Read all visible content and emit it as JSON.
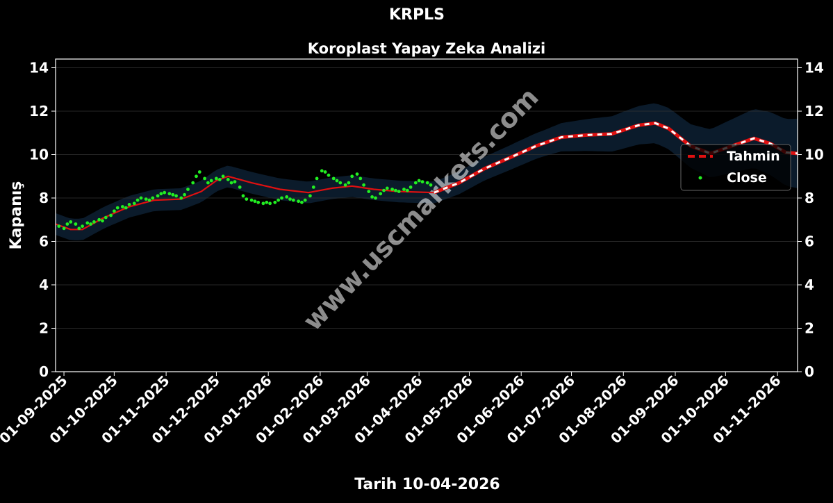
{
  "chart_data": {
    "type": "line",
    "suptitle": "KRPLS",
    "title": "Koroplast Yapay Zeka Analizi",
    "xlabel": "Tarih 10-04-2026",
    "ylabel": "Kapanış",
    "ylim": [
      0,
      14.4
    ],
    "yticks": [
      0,
      2,
      4,
      6,
      8,
      10,
      12,
      14
    ],
    "xlim": [
      "2025-08-27",
      "2026-11-13"
    ],
    "xticks": [
      {
        "date": "2025-09-01",
        "label": "01-09-2025"
      },
      {
        "date": "2025-10-01",
        "label": "01-10-2025"
      },
      {
        "date": "2025-11-01",
        "label": "01-11-2025"
      },
      {
        "date": "2025-12-01",
        "label": "01-12-2025"
      },
      {
        "date": "2026-01-01",
        "label": "01-01-2026"
      },
      {
        "date": "2026-02-01",
        "label": "01-02-2026"
      },
      {
        "date": "2026-03-01",
        "label": "01-03-2026"
      },
      {
        "date": "2026-04-01",
        "label": "01-04-2026"
      },
      {
        "date": "2026-05-01",
        "label": "01-05-2026"
      },
      {
        "date": "2026-06-01",
        "label": "01-06-2026"
      },
      {
        "date": "2026-07-01",
        "label": "01-07-2026"
      },
      {
        "date": "2026-08-01",
        "label": "01-08-2026"
      },
      {
        "date": "2026-09-01",
        "label": "01-09-2026"
      },
      {
        "date": "2026-10-01",
        "label": "01-10-2026"
      },
      {
        "date": "2026-11-01",
        "label": "01-11-2026"
      }
    ],
    "grid": true,
    "legend_position": "right",
    "legend": [
      {
        "name": "Tahmin",
        "style": "dashed-line"
      },
      {
        "name": "Close",
        "style": "dots"
      }
    ],
    "watermark": "www.uscmarkets.com",
    "colors": {
      "background": "#000000",
      "band": "#0b1b2b",
      "fit_line": "#e01010",
      "forecast_dash_a": "#e01010",
      "forecast_dash_b": "#ffffff",
      "close_points": "#22ee22",
      "grid": "#333333",
      "text": "#ffffff"
    },
    "band_halfwidth": [
      [
        "2025-08-27",
        0.5
      ],
      [
        "2026-04-10",
        0.5
      ],
      [
        "2026-06-15",
        0.6
      ],
      [
        "2026-08-01",
        0.85
      ],
      [
        "2026-09-10",
        1.0
      ],
      [
        "2026-11-13",
        1.6
      ]
    ],
    "series": [
      {
        "name": "Tahmin",
        "role": "fit",
        "points": [
          [
            "2025-08-27",
            6.8
          ],
          [
            "2025-09-05",
            6.55
          ],
          [
            "2025-09-12",
            6.55
          ],
          [
            "2025-09-25",
            7.1
          ],
          [
            "2025-10-10",
            7.6
          ],
          [
            "2025-10-25",
            7.9
          ],
          [
            "2025-11-10",
            7.95
          ],
          [
            "2025-11-22",
            8.3
          ],
          [
            "2025-12-01",
            8.8
          ],
          [
            "2025-12-08",
            9.0
          ],
          [
            "2025-12-22",
            8.7
          ],
          [
            "2026-01-08",
            8.4
          ],
          [
            "2026-01-25",
            8.25
          ],
          [
            "2026-02-08",
            8.45
          ],
          [
            "2026-02-20",
            8.55
          ],
          [
            "2026-03-05",
            8.4
          ],
          [
            "2026-03-20",
            8.3
          ],
          [
            "2026-04-10",
            8.25
          ]
        ]
      },
      {
        "name": "Tahmin",
        "role": "forecast",
        "points": [
          [
            "2026-04-10",
            8.25
          ],
          [
            "2026-04-25",
            8.7
          ],
          [
            "2026-05-10",
            9.35
          ],
          [
            "2026-05-25",
            9.85
          ],
          [
            "2026-06-10",
            10.4
          ],
          [
            "2026-06-25",
            10.8
          ],
          [
            "2026-07-10",
            10.9
          ],
          [
            "2026-07-25",
            10.95
          ],
          [
            "2026-08-10",
            11.35
          ],
          [
            "2026-08-20",
            11.45
          ],
          [
            "2026-08-28",
            11.2
          ],
          [
            "2026-09-10",
            10.4
          ],
          [
            "2026-09-22",
            10.05
          ],
          [
            "2026-10-05",
            10.4
          ],
          [
            "2026-10-18",
            10.75
          ],
          [
            "2026-10-28",
            10.5
          ],
          [
            "2026-11-06",
            10.1
          ],
          [
            "2026-11-13",
            10.05
          ]
        ]
      },
      {
        "name": "Close",
        "role": "points",
        "points": [
          [
            "2025-08-29",
            6.7
          ],
          [
            "2025-09-01",
            6.6
          ],
          [
            "2025-09-03",
            6.8
          ],
          [
            "2025-09-05",
            6.9
          ],
          [
            "2025-09-08",
            6.8
          ],
          [
            "2025-09-10",
            6.6
          ],
          [
            "2025-09-12",
            6.7
          ],
          [
            "2025-09-15",
            6.85
          ],
          [
            "2025-09-17",
            6.8
          ],
          [
            "2025-09-19",
            6.9
          ],
          [
            "2025-09-22",
            7.0
          ],
          [
            "2025-09-24",
            6.95
          ],
          [
            "2025-09-26",
            7.1
          ],
          [
            "2025-09-29",
            7.2
          ],
          [
            "2025-10-01",
            7.4
          ],
          [
            "2025-10-03",
            7.55
          ],
          [
            "2025-10-06",
            7.6
          ],
          [
            "2025-10-08",
            7.55
          ],
          [
            "2025-10-10",
            7.7
          ],
          [
            "2025-10-13",
            7.75
          ],
          [
            "2025-10-15",
            7.9
          ],
          [
            "2025-10-17",
            8.0
          ],
          [
            "2025-10-20",
            7.95
          ],
          [
            "2025-10-22",
            7.9
          ],
          [
            "2025-10-24",
            8.0
          ],
          [
            "2025-10-27",
            8.1
          ],
          [
            "2025-10-29",
            8.2
          ],
          [
            "2025-10-31",
            8.25
          ],
          [
            "2025-11-03",
            8.2
          ],
          [
            "2025-11-05",
            8.15
          ],
          [
            "2025-11-07",
            8.1
          ],
          [
            "2025-11-10",
            8.0
          ],
          [
            "2025-11-12",
            8.15
          ],
          [
            "2025-11-14",
            8.4
          ],
          [
            "2025-11-17",
            8.7
          ],
          [
            "2025-11-19",
            9.0
          ],
          [
            "2025-11-21",
            9.2
          ],
          [
            "2025-11-24",
            8.9
          ],
          [
            "2025-11-26",
            8.7
          ],
          [
            "2025-11-28",
            8.8
          ],
          [
            "2025-12-01",
            8.9
          ],
          [
            "2025-12-03",
            8.85
          ],
          [
            "2025-12-05",
            9.0
          ],
          [
            "2025-12-08",
            8.85
          ],
          [
            "2025-12-10",
            8.7
          ],
          [
            "2025-12-12",
            8.75
          ],
          [
            "2025-12-15",
            8.5
          ],
          [
            "2025-12-17",
            8.1
          ],
          [
            "2025-12-19",
            7.95
          ],
          [
            "2025-12-22",
            7.9
          ],
          [
            "2025-12-24",
            7.85
          ],
          [
            "2025-12-26",
            7.8
          ],
          [
            "2025-12-29",
            7.75
          ],
          [
            "2025-12-31",
            7.8
          ],
          [
            "2026-01-02",
            7.75
          ],
          [
            "2026-01-05",
            7.8
          ],
          [
            "2026-01-07",
            7.9
          ],
          [
            "2026-01-09",
            8.0
          ],
          [
            "2026-01-12",
            8.05
          ],
          [
            "2026-01-14",
            7.95
          ],
          [
            "2026-01-16",
            7.9
          ],
          [
            "2026-01-19",
            7.85
          ],
          [
            "2026-01-21",
            7.8
          ],
          [
            "2026-01-23",
            7.9
          ],
          [
            "2026-01-26",
            8.1
          ],
          [
            "2026-01-28",
            8.5
          ],
          [
            "2026-01-30",
            8.9
          ],
          [
            "2026-02-02",
            9.25
          ],
          [
            "2026-02-04",
            9.2
          ],
          [
            "2026-02-06",
            9.05
          ],
          [
            "2026-02-09",
            8.9
          ],
          [
            "2026-02-11",
            8.8
          ],
          [
            "2026-02-13",
            8.7
          ],
          [
            "2026-02-16",
            8.6
          ],
          [
            "2026-02-18",
            8.7
          ],
          [
            "2026-02-20",
            9.0
          ],
          [
            "2026-02-23",
            9.1
          ],
          [
            "2026-02-25",
            8.9
          ],
          [
            "2026-02-27",
            8.6
          ],
          [
            "2026-03-02",
            8.3
          ],
          [
            "2026-03-04",
            8.05
          ],
          [
            "2026-03-06",
            8.0
          ],
          [
            "2026-03-09",
            8.2
          ],
          [
            "2026-03-11",
            8.35
          ],
          [
            "2026-03-13",
            8.45
          ],
          [
            "2026-03-16",
            8.4
          ],
          [
            "2026-03-18",
            8.35
          ],
          [
            "2026-03-20",
            8.3
          ],
          [
            "2026-03-23",
            8.4
          ],
          [
            "2026-03-25",
            8.35
          ],
          [
            "2026-03-27",
            8.5
          ],
          [
            "2026-03-30",
            8.7
          ],
          [
            "2026-04-01",
            8.8
          ],
          [
            "2026-04-03",
            8.75
          ],
          [
            "2026-04-06",
            8.7
          ],
          [
            "2026-04-08",
            8.6
          ]
        ]
      }
    ]
  }
}
